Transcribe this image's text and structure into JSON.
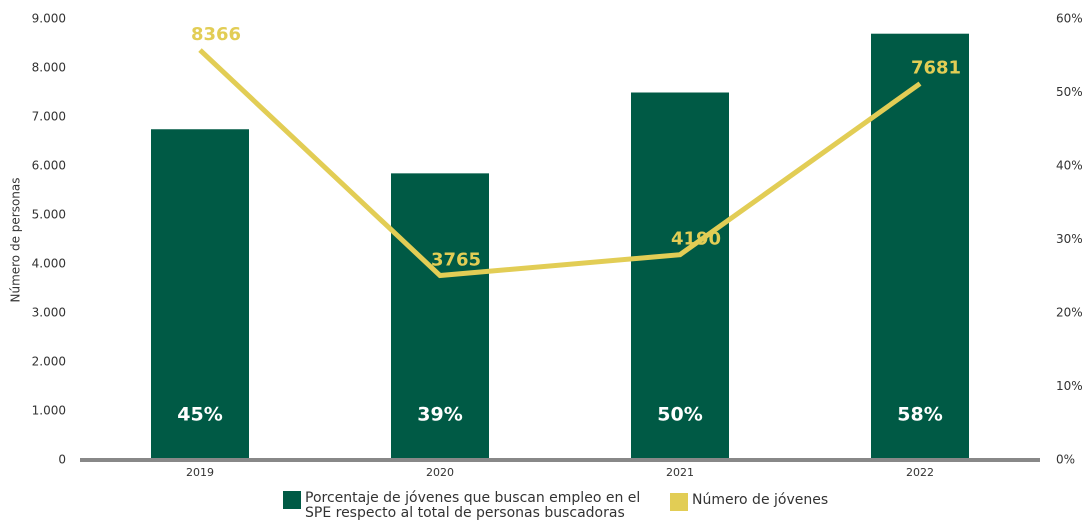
{
  "chart_data": {
    "type": "bar-line",
    "ylabel": "Número de personas",
    "categories": [
      "2019",
      "2020",
      "2021",
      "2022"
    ],
    "series": [
      {
        "name": "Porcentaje de jóvenes que buscan empleo en el SPE respecto al total de personas buscadoras",
        "type": "bar",
        "axis": "y2",
        "color": "#005a45",
        "values": [
          45,
          39,
          50,
          58
        ],
        "value_labels": [
          "45%",
          "39%",
          "50%",
          "58%"
        ]
      },
      {
        "name": "Número de jóvenes",
        "type": "line",
        "color": "#e2cd55",
        "values": [
          8366,
          3765,
          4190,
          7681
        ]
      }
    ],
    "ylim": [
      0,
      9000
    ],
    "yticks": [
      0,
      {
        "value": 1000,
        "label": "1.000"
      },
      {
        "value": 2000,
        "label": "2.000"
      },
      {
        "value": 3000,
        "label": "3.000"
      },
      {
        "value": 4000,
        "label": "4.000"
      },
      {
        "value": 5000,
        "label": "5.000"
      },
      {
        "value": 6000,
        "label": "6.000"
      },
      {
        "value": 7000,
        "label": "7.000"
      },
      {
        "value": 8000,
        "label": "8.000"
      },
      {
        "value": 9000,
        "label": "9.000"
      }
    ],
    "y2lim": [
      0,
      60
    ],
    "y2ticks": [
      {
        "value": 0,
        "label": "0%"
      },
      {
        "value": 10,
        "label": "10%"
      },
      {
        "value": 20,
        "label": "20%"
      },
      {
        "value": 30,
        "label": "30%"
      },
      {
        "value": 40,
        "label": "40%"
      },
      {
        "value": 50,
        "label": "50%"
      },
      {
        "value": 60,
        "label": "60%"
      }
    ],
    "grid": false
  }
}
